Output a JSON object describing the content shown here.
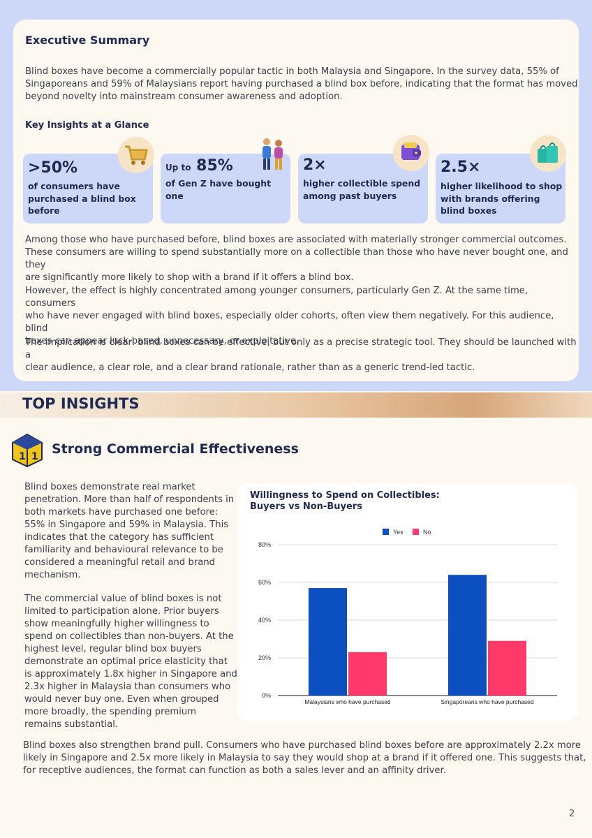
{
  "summary": {
    "title": "Executive Summary",
    "intro_lines": [
      "Blind boxes have become a commercially popular tactic in both Malaysia and Singapore. In the survey data, 55% of",
      "Singaporeans and 59% of Malaysians report having purchased a blind box before, indicating that the format has moved",
      "beyond novelty into mainstream consumer awareness and adoption."
    ],
    "key_title": "Key Insights at a Glance",
    "stats": [
      {
        "prefix": "",
        "value": ">50%",
        "desc": [
          "of consumers have",
          "purchased a blind box",
          "before"
        ],
        "icon": "shopping-cart-icon"
      },
      {
        "prefix": "Up to",
        "value": "85%",
        "desc": [
          "of Gen Z have bought",
          "one"
        ],
        "icon": "people-icon"
      },
      {
        "prefix": "",
        "value": "2×",
        "desc": [
          "higher collectible spend",
          "among past buyers"
        ],
        "icon": "wallet-icon"
      },
      {
        "prefix": "",
        "value": "2.5×",
        "desc": [
          "higher likelihood to shop",
          "with brands offering",
          "blind boxes"
        ],
        "icon": "shopping-bags-icon"
      }
    ],
    "para2_lines": [
      "Among those who have purchased before, blind boxes are associated with materially stronger commercial outcomes.",
      "These consumers are willing to spend substantially more on a collectible than those who have never bought one, and they",
      "are significantly more likely to shop with a brand if it offers a blind box."
    ],
    "para3_lines": [
      "However, the effect is highly concentrated among younger consumers, particularly Gen Z. At the same time, consumers",
      "who have never engaged with blind boxes, especially older cohorts, often view them negatively. For this audience, blind",
      "boxes can appear luck-based, unnecessary, or exploitative."
    ],
    "para4_lines": [
      "The implication is clear: blind boxes can be effective, but only as a precise strategic tool. They should be launched with a",
      "clear audience, a clear role, and a clear brand rationale, rather than as a generic trend-led tactic."
    ]
  },
  "banner": {
    "title": "TOP INSIGHTS"
  },
  "section": {
    "title": "Strong Commercial Effectiveness",
    "icon": "dice-icon",
    "left_para1_lines": [
      "Blind boxes demonstrate real market",
      "penetration. More than half of respondents in",
      "both markets have purchased one before:",
      "55% in Singapore and 59% in Malaysia. This",
      "indicates that the category has sufficient",
      "familiarity and behavioural relevance to be",
      "considered a meaningful retail and brand",
      "mechanism."
    ],
    "left_para2_lines": [
      "The commercial value of blind boxes is not",
      "limited to participation alone. Prior buyers",
      "show meaningfully higher willingness to",
      "spend on collectibles than non-buyers. At the",
      "highest level, regular blind box buyers",
      "demonstrate an optimal price elasticity that",
      "is approximately 1.8x higher in Singapore and",
      "2.3x higher in Malaysia than consumers who",
      "would never buy one. Even when grouped",
      "more broadly, the spending premium",
      "remains substantial."
    ],
    "bottom_para_lines": [
      "Blind boxes also strengthen brand pull. Consumers who have purchased blind boxes before are approximately 2.2x more",
      "likely in Singapore and 2.5x more likely in Malaysia to say they would shop at a brand if it offered one. This suggests that,",
      "for receptive audiences, the format can function as both a sales lever and an affinity driver."
    ]
  },
  "chart_data": {
    "type": "bar",
    "title_lines": [
      "Willingness to Spend on Collectibles:",
      "Buyers vs Non-Buyers"
    ],
    "categories": [
      "Malaysians who have purchased",
      "Singaporeans who have purchased"
    ],
    "series": [
      {
        "name": "Yes",
        "color": "#0b4fc0",
        "values": [
          57,
          64
        ]
      },
      {
        "name": "No",
        "color": "#ff3a6a",
        "values": [
          23,
          29
        ]
      }
    ],
    "yticks": [
      "0%",
      "20%",
      "40%",
      "60%",
      "80%"
    ],
    "ylim": [
      0,
      80
    ],
    "xlabel": "",
    "ylabel": "",
    "legend": "top-center",
    "grid": true
  },
  "page_number": "2"
}
